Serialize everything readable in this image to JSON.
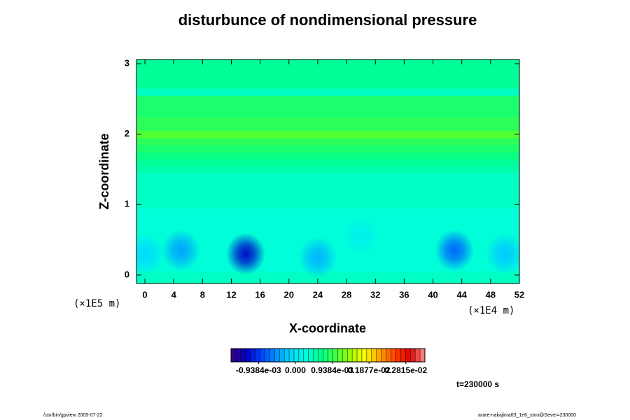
{
  "chart_data": {
    "type": "contour",
    "title": "disturbunce of nondimensional pressure",
    "x_label": "X-coordinate",
    "y_label": "Z-coordinate",
    "x_unit": "(×1E4 m)",
    "y_unit": "(×1E5 m)",
    "time_label": "t=230000 s",
    "footer_left": "/usr/bin/gpview 2005-07-22",
    "footer_right": "arare-nakajima03_1e6_stno@Sever=230000",
    "xlim": [
      -1.17,
      52
    ],
    "xticks": [
      0,
      4,
      8,
      12,
      16,
      20,
      24,
      28,
      32,
      36,
      40,
      44,
      48,
      52
    ],
    "ylim": [
      -0.12,
      3.06
    ],
    "yticks": [
      0,
      1,
      2,
      3
    ],
    "clim": [
      -0.00164,
      0.0033
    ],
    "colormap": [
      "#400080",
      "#0000c0",
      "#0040ff",
      "#0090ff",
      "#00d8ff",
      "#00ffe0",
      "#00ff90",
      "#40ff40",
      "#a0ff00",
      "#ffff00",
      "#ffa000",
      "#ff4000",
      "#e00000",
      "#ff9090"
    ],
    "cticks": [
      {
        "value": -0.0009384,
        "label": "-0.9384e-03"
      },
      {
        "value": 0,
        "label": "0.000"
      },
      {
        "value": 0.0009384,
        "label": "0.9384e-03"
      },
      {
        "value": 0.001877,
        "label": "0.1877e-02"
      },
      {
        "value": 0.002815,
        "label": "0.2815e-02"
      }
    ],
    "layers": {
      "z": [
        -0.1,
        0.0,
        0.1,
        0.2,
        0.3,
        0.4,
        0.5,
        0.6,
        0.7,
        0.8,
        0.9,
        1.0,
        1.1,
        1.2,
        1.3,
        1.4,
        1.5,
        1.6,
        1.7,
        1.8,
        1.9,
        2.0,
        2.1,
        2.2,
        2.3,
        2.4,
        2.5,
        2.6,
        2.7,
        2.8,
        2.9,
        3.0
      ],
      "values": [
        0.0004,
        0.0004,
        0.0003,
        0.0003,
        0.0003,
        0.0003,
        0.0003,
        0.0003,
        0.0003,
        0.0003,
        0.0003,
        0.0004,
        0.0004,
        0.0004,
        0.0004,
        0.0004,
        0.0005,
        0.0006,
        0.0007,
        0.0008,
        0.0009,
        0.0011,
        0.0009,
        0.0009,
        0.0008,
        0.0008,
        0.0008,
        0.0004,
        0.0006,
        0.0006,
        0.0006,
        0.0006
      ]
    },
    "blobs": {
      "x": [
        0,
        5,
        14,
        24,
        30,
        43,
        50
      ],
      "z": [
        0.3,
        0.35,
        0.3,
        0.25,
        0.55,
        0.35,
        0.3
      ],
      "values": [
        -0.0001,
        -0.0004,
        -0.0012,
        -0.0003,
        0.0001,
        -0.0007,
        -0.0002
      ]
    }
  }
}
